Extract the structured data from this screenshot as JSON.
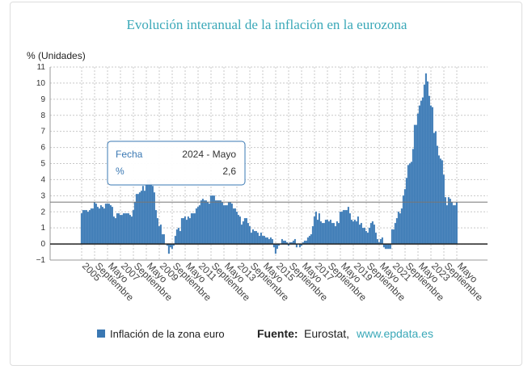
{
  "chart_data": {
    "type": "bar",
    "title": "Evolución interanual de la inflación en la eurozona",
    "y_label": "% (Unidades)",
    "series_name": "Inflación de la zona euro",
    "color": "#3a78b3",
    "source": {
      "label": "Fuente:",
      "text": "Eurostat,",
      "link": "www.epdata.es"
    },
    "tooltip": {
      "date_label": "Fecha",
      "date": "2024 - Mayo",
      "value_label": "%",
      "value": "2,6"
    },
    "ylim": [
      -1,
      11
    ],
    "yticks": [
      {
        "value": -1,
        "label": "−1"
      },
      0,
      1,
      2,
      3,
      4,
      5,
      6,
      7,
      8,
      9,
      10,
      11
    ],
    "grid": true,
    "categories": [
      "2005",
      null,
      null,
      null,
      null,
      null,
      null,
      null,
      "Septiembre",
      null,
      null,
      null,
      null,
      null,
      null,
      null,
      "Mayo",
      null,
      null,
      null,
      null,
      null,
      null,
      null,
      "2007",
      null,
      null,
      null,
      null,
      null,
      null,
      null,
      "Septiembre",
      null,
      null,
      null,
      null,
      null,
      null,
      null,
      "Mayo",
      null,
      null,
      null,
      null,
      null,
      null,
      null,
      "2009",
      null,
      null,
      null,
      null,
      null,
      null,
      null,
      "Septiembre",
      null,
      null,
      null,
      null,
      null,
      null,
      null,
      "Mayo",
      null,
      null,
      null,
      null,
      null,
      null,
      null,
      "2011",
      null,
      null,
      null,
      null,
      null,
      null,
      null,
      "Septiembre",
      null,
      null,
      null,
      null,
      null,
      null,
      null,
      "Mayo",
      null,
      null,
      null,
      null,
      null,
      null,
      null,
      "2013",
      null,
      null,
      null,
      null,
      null,
      null,
      null,
      "Septiembre",
      null,
      null,
      null,
      null,
      null,
      null,
      null,
      "Mayo",
      null,
      null,
      null,
      null,
      null,
      null,
      null,
      "2015",
      null,
      null,
      null,
      null,
      null,
      null,
      null,
      "Septiembre",
      null,
      null,
      null,
      null,
      null,
      null,
      null,
      "Mayo",
      null,
      null,
      null,
      null,
      null,
      null,
      null,
      "2017",
      null,
      null,
      null,
      null,
      null,
      null,
      null,
      "Septiembre",
      null,
      null,
      null,
      null,
      null,
      null,
      null,
      "Mayo",
      null,
      null,
      null,
      null,
      null,
      null,
      null,
      "2019",
      null,
      null,
      null,
      null,
      null,
      null,
      null,
      "Septiembre",
      null,
      null,
      null,
      null,
      null,
      null,
      null,
      "Mayo",
      null,
      null,
      null,
      null,
      null,
      null,
      null,
      "2021",
      null,
      null,
      null,
      null,
      null,
      null,
      null,
      "Septiembre",
      null,
      null,
      null,
      null,
      null,
      null,
      null,
      "Mayo",
      null,
      null,
      null,
      null,
      null,
      null,
      null,
      "2023",
      null,
      null,
      null,
      null,
      null,
      null,
      null,
      "Septiembre",
      null,
      null,
      null,
      null,
      null,
      null,
      null,
      "Mayo"
    ],
    "values": [
      1.9,
      2.1,
      2.1,
      2.1,
      2.0,
      2.1,
      2.2,
      2.2,
      2.6,
      2.5,
      2.3,
      2.2,
      2.4,
      2.3,
      2.2,
      2.5,
      2.5,
      2.5,
      2.4,
      2.3,
      1.7,
      1.6,
      1.9,
      1.9,
      1.8,
      1.8,
      1.9,
      1.9,
      1.9,
      1.9,
      1.8,
      1.7,
      2.1,
      2.6,
      3.1,
      3.1,
      3.2,
      3.3,
      3.6,
      3.3,
      3.7,
      4.0,
      4.0,
      3.8,
      3.6,
      3.2,
      2.1,
      1.6,
      1.1,
      1.2,
      0.6,
      0.6,
      0.0,
      -0.1,
      -0.6,
      -0.2,
      -0.3,
      -0.1,
      0.5,
      0.9,
      1.0,
      0.8,
      1.6,
      1.6,
      1.7,
      1.5,
      1.7,
      1.6,
      1.9,
      1.9,
      1.9,
      2.2,
      2.3,
      2.4,
      2.7,
      2.8,
      2.7,
      2.7,
      2.6,
      2.5,
      3.0,
      3.0,
      3.0,
      2.7,
      2.7,
      2.7,
      2.7,
      2.6,
      2.4,
      2.4,
      2.4,
      2.6,
      2.6,
      2.5,
      2.2,
      2.2,
      2.0,
      1.8,
      1.7,
      1.2,
      1.4,
      1.6,
      1.6,
      1.3,
      1.1,
      0.7,
      0.9,
      0.8,
      0.8,
      0.7,
      0.5,
      0.7,
      0.5,
      0.5,
      0.4,
      0.4,
      0.3,
      0.4,
      0.3,
      -0.2,
      -0.6,
      -0.3,
      -0.1,
      0.0,
      0.3,
      0.2,
      0.2,
      0.1,
      -0.1,
      0.1,
      0.1,
      0.2,
      0.3,
      -0.2,
      0.0,
      -0.2,
      -0.1,
      0.1,
      0.2,
      0.2,
      0.4,
      0.5,
      0.6,
      1.1,
      1.7,
      2.0,
      1.5,
      1.9,
      1.4,
      1.3,
      1.3,
      1.5,
      1.5,
      1.4,
      1.5,
      1.3,
      1.3,
      1.1,
      1.4,
      1.3,
      2.0,
      2.0,
      2.1,
      2.1,
      2.1,
      2.3,
      1.9,
      1.5,
      1.4,
      1.5,
      1.4,
      1.7,
      1.2,
      1.3,
      1.0,
      1.0,
      0.8,
      0.7,
      1.0,
      1.3,
      1.4,
      1.2,
      0.7,
      0.3,
      0.1,
      0.3,
      0.4,
      -0.2,
      -0.3,
      -0.3,
      -0.3,
      -0.3,
      0.9,
      0.9,
      1.3,
      1.6,
      2.0,
      1.9,
      2.2,
      3.0,
      3.4,
      4.1,
      4.9,
      5.0,
      5.1,
      5.9,
      7.4,
      7.4,
      8.1,
      8.6,
      8.9,
      9.1,
      9.9,
      10.6,
      10.1,
      9.2,
      8.6,
      8.5,
      6.9,
      7.0,
      6.1,
      5.5,
      5.3,
      5.2,
      4.3,
      2.9,
      2.4,
      2.9,
      2.8,
      2.6,
      2.4,
      2.4,
      2.6
    ]
  }
}
